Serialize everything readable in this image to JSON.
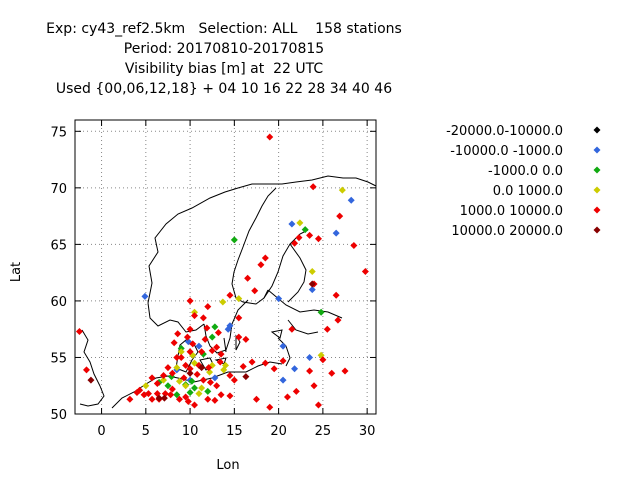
{
  "title": {
    "line1": "Exp: cy43_ref2.5km   Selection: ALL    158 stations",
    "line2": "Period: 20170810-20170815",
    "line3": "Visibility bias [m] at  22 UTC",
    "line4": "Used {00,06,12,18} + 04 10 16 22 28 34 40 46"
  },
  "chart_data": {
    "type": "scatter",
    "xlabel": "Lon",
    "ylabel": "Lat",
    "xlim": [
      -3,
      31
    ],
    "ylim": [
      50,
      76
    ],
    "xticks": [
      0,
      5,
      10,
      15,
      20,
      25,
      30
    ],
    "yticks": [
      50,
      55,
      60,
      65,
      70,
      75
    ],
    "grid": true,
    "legend_position": "right",
    "legend": [
      {
        "label": "-20000.0-10000.0",
        "color": "#000000"
      },
      {
        "label": "-10000.0 -1000.0",
        "color": "#3366dd"
      },
      {
        "label": "-1000.0 0.0",
        "color": "#11aa11"
      },
      {
        "label": "0.0 1000.0",
        "color": "#cccc00"
      },
      {
        "label": "1000.0 10000.0",
        "color": "#ee0000"
      },
      {
        "label": "10000.0 20000.0",
        "color": "#880000"
      }
    ],
    "series": [
      {
        "name": "-10000.0 -1000.0",
        "color": "#3366dd",
        "points": [
          [
            4.9,
            60.4
          ],
          [
            21.5,
            66.8
          ],
          [
            28.2,
            68.9
          ],
          [
            26.5,
            66.0
          ],
          [
            20.0,
            60.2
          ],
          [
            23.8,
            61.0
          ],
          [
            20.5,
            56.0
          ],
          [
            14.5,
            57.8
          ],
          [
            11.0,
            56.0
          ],
          [
            9.8,
            56.4
          ],
          [
            21.8,
            54.0
          ],
          [
            10.0,
            53.0
          ],
          [
            12.8,
            53.2
          ],
          [
            8.5,
            53.9
          ],
          [
            20.5,
            53.0
          ],
          [
            23.5,
            55.0
          ],
          [
            14.3,
            57.5
          ]
        ]
      },
      {
        "name": "-1000.0 0.0",
        "color": "#11aa11",
        "points": [
          [
            15.0,
            65.4
          ],
          [
            23.0,
            66.3
          ],
          [
            24.8,
            59.0
          ],
          [
            12.8,
            57.7
          ],
          [
            9.0,
            55.8
          ],
          [
            11.5,
            55.3
          ],
          [
            10.5,
            52.3
          ],
          [
            9.5,
            52.6
          ],
          [
            7.5,
            52.5
          ],
          [
            8.5,
            51.7
          ],
          [
            10.0,
            51.9
          ],
          [
            12.0,
            52.0
          ],
          [
            6.5,
            52.8
          ],
          [
            12.5,
            56.8
          ],
          [
            7.9,
            53.3
          ],
          [
            10.2,
            52.9
          ]
        ]
      },
      {
        "name": "0.0 1000.0",
        "color": "#cccc00",
        "points": [
          [
            27.2,
            69.8
          ],
          [
            22.4,
            66.9
          ],
          [
            23.8,
            62.6
          ],
          [
            15.5,
            60.2
          ],
          [
            13.7,
            59.9
          ],
          [
            10.5,
            59.0
          ],
          [
            9.0,
            55.5
          ],
          [
            10.5,
            54.5
          ],
          [
            12.5,
            54.3
          ],
          [
            8.5,
            54.1
          ],
          [
            5.0,
            52.5
          ],
          [
            11.0,
            51.8
          ],
          [
            9.5,
            52.5
          ],
          [
            24.8,
            55.2
          ],
          [
            7.0,
            53.0
          ],
          [
            10.3,
            55.2
          ],
          [
            12.2,
            53.7
          ],
          [
            13.8,
            53.9
          ],
          [
            8.8,
            52.9
          ],
          [
            11.3,
            52.3
          ],
          [
            14.0,
            54.3
          ]
        ]
      },
      {
        "name": "1000.0 10000.0",
        "color": "#ee0000",
        "points": [
          [
            19.0,
            74.5
          ],
          [
            23.9,
            70.1
          ],
          [
            26.9,
            67.5
          ],
          [
            22.3,
            65.6
          ],
          [
            23.5,
            65.8
          ],
          [
            24.5,
            65.5
          ],
          [
            28.5,
            64.9
          ],
          [
            29.8,
            62.6
          ],
          [
            24.0,
            61.5
          ],
          [
            26.5,
            60.5
          ],
          [
            17.3,
            60.9
          ],
          [
            16.5,
            62.0
          ],
          [
            18.0,
            63.2
          ],
          [
            18.5,
            63.8
          ],
          [
            21.8,
            65.1
          ],
          [
            15.5,
            58.5
          ],
          [
            11.9,
            57.6
          ],
          [
            13.2,
            57.2
          ],
          [
            16.3,
            56.6
          ],
          [
            8.6,
            57.1
          ],
          [
            10.0,
            57.5
          ],
          [
            10.5,
            58.7
          ],
          [
            -2.5,
            57.3
          ],
          [
            -1.7,
            53.9
          ],
          [
            4.0,
            51.9
          ],
          [
            3.2,
            51.3
          ],
          [
            5.7,
            51.3
          ],
          [
            6.5,
            51.3
          ],
          [
            7.2,
            51.8
          ],
          [
            8.0,
            52.2
          ],
          [
            9.5,
            51.5
          ],
          [
            10.5,
            50.8
          ],
          [
            12.0,
            51.3
          ],
          [
            13.5,
            51.7
          ],
          [
            14.5,
            51.6
          ],
          [
            14.5,
            53.4
          ],
          [
            16.0,
            54.2
          ],
          [
            17.0,
            54.6
          ],
          [
            18.5,
            54.5
          ],
          [
            19.5,
            54.0
          ],
          [
            20.5,
            54.7
          ],
          [
            22.0,
            52.0
          ],
          [
            24.0,
            52.5
          ],
          [
            23.5,
            53.8
          ],
          [
            26.0,
            53.6
          ],
          [
            27.5,
            53.8
          ],
          [
            25.0,
            54.8
          ],
          [
            26.7,
            58.3
          ],
          [
            21.5,
            57.5
          ],
          [
            13.5,
            55.3
          ],
          [
            12.5,
            55.6
          ],
          [
            8.5,
            55.0
          ],
          [
            9.5,
            54.3
          ],
          [
            10.8,
            53.5
          ],
          [
            11.5,
            53.0
          ],
          [
            12.3,
            52.8
          ],
          [
            13.0,
            52.5
          ],
          [
            7.5,
            54.1
          ],
          [
            5.7,
            53.2
          ],
          [
            6.3,
            52.7
          ],
          [
            7.0,
            53.4
          ],
          [
            8.0,
            53.6
          ],
          [
            9.3,
            53.2
          ],
          [
            10.0,
            54.0
          ],
          [
            11.0,
            54.3
          ],
          [
            13.4,
            54.6
          ],
          [
            12.1,
            54.1
          ],
          [
            15.0,
            53.0
          ],
          [
            9.0,
            55.0
          ],
          [
            10.0,
            55.5
          ],
          [
            11.3,
            55.5
          ],
          [
            8.2,
            56.3
          ],
          [
            9.7,
            56.8
          ],
          [
            10.3,
            56.2
          ],
          [
            11.7,
            56.6
          ],
          [
            13.0,
            55.9
          ],
          [
            12.0,
            59.5
          ],
          [
            11.5,
            58.5
          ],
          [
            10.0,
            60.0
          ],
          [
            14.5,
            60.5
          ],
          [
            15.5,
            56.8
          ],
          [
            6.3,
            51.8
          ],
          [
            7.8,
            51.7
          ],
          [
            8.8,
            51.3
          ],
          [
            9.8,
            51.1
          ],
          [
            12.8,
            51.2
          ],
          [
            17.5,
            51.3
          ],
          [
            19.0,
            50.6
          ],
          [
            21.0,
            51.5
          ],
          [
            24.5,
            50.8
          ],
          [
            25.5,
            57.5
          ],
          [
            4.3,
            52.1
          ],
          [
            4.8,
            51.7
          ],
          [
            5.3,
            51.8
          ]
        ]
      },
      {
        "name": "10000.0 20000.0",
        "color": "#880000",
        "points": [
          [
            -1.2,
            53.0
          ],
          [
            6.5,
            51.4
          ],
          [
            16.3,
            53.3
          ],
          [
            23.8,
            61.5
          ],
          [
            10.0,
            53.6
          ],
          [
            11.3,
            54.1
          ],
          [
            7.1,
            51.4
          ]
        ]
      }
    ]
  }
}
